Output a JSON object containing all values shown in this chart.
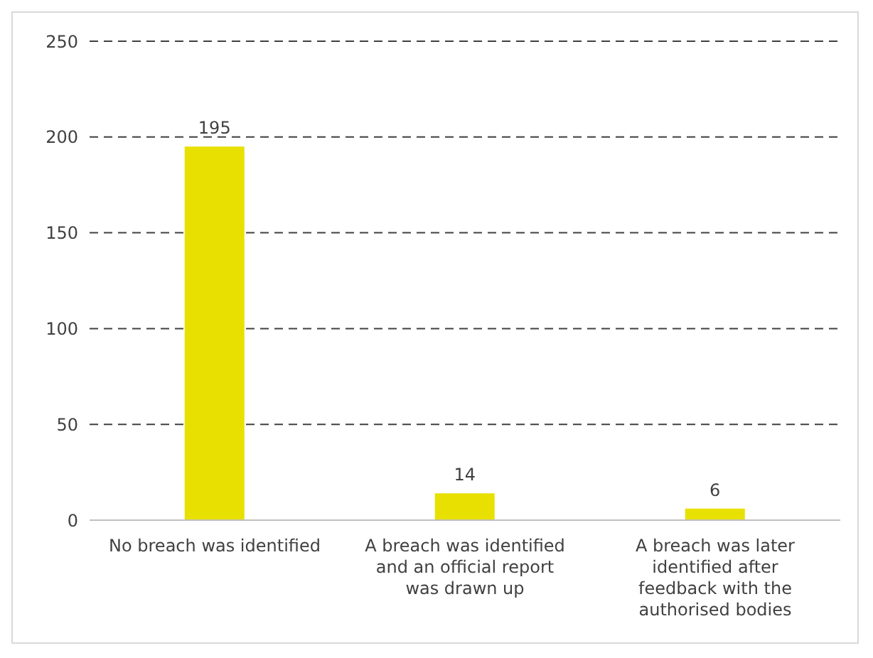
{
  "chart_data": {
    "type": "bar",
    "categories": [
      "No breach was identified",
      "A breach was identified and an official report was drawn up",
      "A breach was later identified after feedback with the authorised bodies"
    ],
    "values": [
      195,
      14,
      6
    ],
    "color": "#e8e000",
    "ylim": [
      0,
      250
    ],
    "yticks": [
      0,
      50,
      100,
      150,
      200,
      250
    ],
    "grid": "y",
    "data_labels": true
  }
}
